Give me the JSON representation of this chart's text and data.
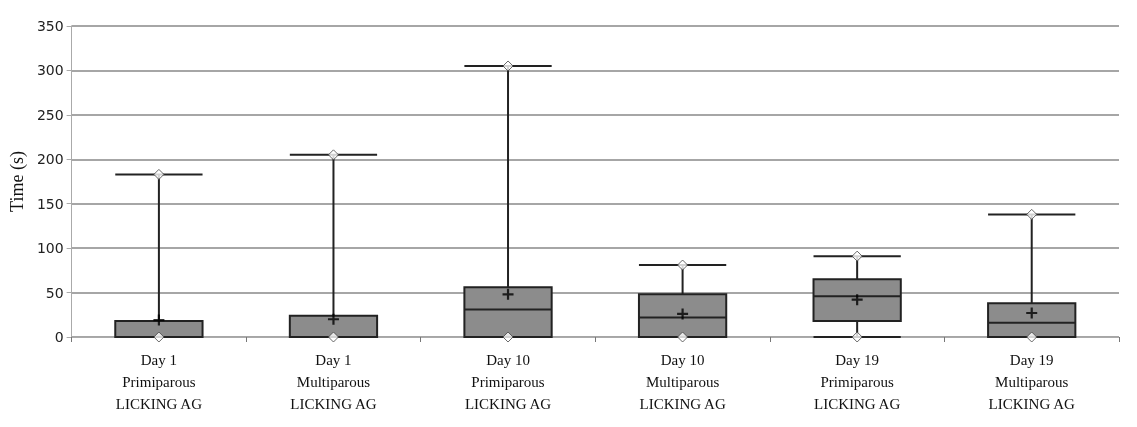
{
  "chart_data": {
    "type": "box",
    "ylabel": "Time (s)",
    "categories": [
      "Day 1\nPrimiparous\nLICKING AG",
      "Day 1\nMultiparous\nLICKING AG",
      "Day 10\nPrimiparous\nLICKING AG",
      "Day 10\nMultiparous\nLICKING AG",
      "Day 19\nPrimiparous\nLICKING AG",
      "Day 19\nMultiparous\nLICKING AG"
    ],
    "series": [
      {
        "color": "#8c8c8c",
        "boxes": [
          {
            "low": 0,
            "q1": 0,
            "median": 0,
            "q3": 18,
            "high": 183,
            "mean": 19
          },
          {
            "low": 0,
            "q1": 0,
            "median": 0,
            "q3": 24,
            "high": 205,
            "mean": 20
          },
          {
            "low": 0,
            "q1": 0,
            "median": 31,
            "q3": 56,
            "high": 305,
            "mean": 48
          },
          {
            "low": 0,
            "q1": 0,
            "median": 22,
            "q3": 48,
            "high": 81,
            "mean": 26
          },
          {
            "low": 0,
            "q1": 18,
            "median": 46,
            "q3": 65,
            "high": 91,
            "mean": 42
          },
          {
            "low": 0,
            "q1": 0,
            "median": 16,
            "q3": 38,
            "high": 138,
            "mean": 27
          }
        ]
      },
      {
        "type": "scatter",
        "color": "#ffffff",
        "x": [
          "Day 1\nPrimiparous\nLICKING AG",
          "Day 1\nPrimiparous\nLICKING AG",
          "Day 1\nMultiparous\nLICKING AG",
          "Day 1\nMultiparous\nLICKING AG",
          "Day 10\nPrimiparous\nLICKING AG",
          "Day 10\nPrimiparous\nLICKING AG",
          "Day 10\nMultiparous\nLICKING AG",
          "Day 10\nMultiparous\nLICKING AG",
          "Day 19\nPrimiparous\nLICKING AG",
          "Day 19\nPrimiparous\nLICKING AG",
          "Day 19\nMultiparous\nLICKING AG",
          "Day 19\nMultiparous\nLICKING AG"
        ],
        "values": [
          0,
          183,
          0,
          205,
          0,
          305,
          0,
          81,
          0,
          91,
          0,
          138
        ]
      }
    ],
    "ylim": [
      0,
      350
    ],
    "yticks": [
      0,
      50,
      100,
      150,
      200,
      250,
      300,
      350
    ],
    "grid": "y",
    "marker": "diamond"
  }
}
